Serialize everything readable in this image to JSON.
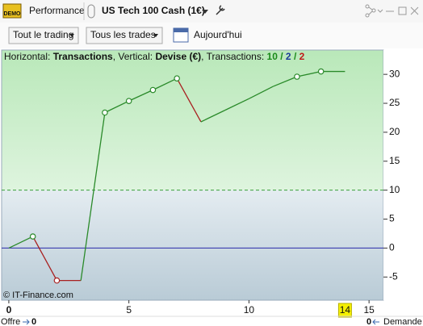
{
  "window": {
    "badge": "DEMO",
    "tab": "Performance",
    "instrument": "US Tech 100 Cash (1€)"
  },
  "toolbar": {
    "filter_trading": "Tout le trading",
    "filter_trades": "Tous les trades",
    "period": "Aujourd'hui"
  },
  "chart_data": {
    "type": "line",
    "header": {
      "h_label": "Horizontal:",
      "h_value": "Transactions",
      "v_label": ", Vertical:",
      "v_value": "Devise (€)",
      "t_label": ", Transactions:",
      "counts": [
        10,
        2,
        2
      ],
      "count_separator": "/",
      "count_colors": [
        "#1a8a1a",
        "#1a3a9a",
        "#c01818"
      ]
    },
    "x": [
      0,
      1,
      2,
      3,
      4,
      5,
      6,
      7,
      8,
      9,
      10,
      11,
      12,
      13,
      14
    ],
    "series": [
      {
        "values": [
          0,
          2,
          -5.6,
          -5.6,
          23.4,
          25.4,
          27.3,
          29.3,
          21.8,
          23.8,
          25.8,
          27.9,
          29.6,
          30.5,
          30.5
        ]
      }
    ],
    "markers": [
      1,
      2,
      4,
      5,
      6,
      7,
      12,
      13
    ],
    "up_color": "#2a8a2a",
    "down_color": "#a82020",
    "xlim": [
      -0.3,
      15.6
    ],
    "xticks": [
      0,
      5,
      10,
      15
    ],
    "highlight_x": 14,
    "ylim": [
      -9,
      34.2
    ],
    "yticks": [
      -5,
      0,
      5,
      10,
      15,
      20,
      25,
      30
    ],
    "threshold": 10,
    "threshold_color": "#3aa03a",
    "baseline_color": "#2a2aa8",
    "credit": "© IT-Finance.com"
  },
  "footer": {
    "bid_label": "Offre",
    "bid": 0,
    "ask": 0,
    "ask_label": "Demande"
  }
}
